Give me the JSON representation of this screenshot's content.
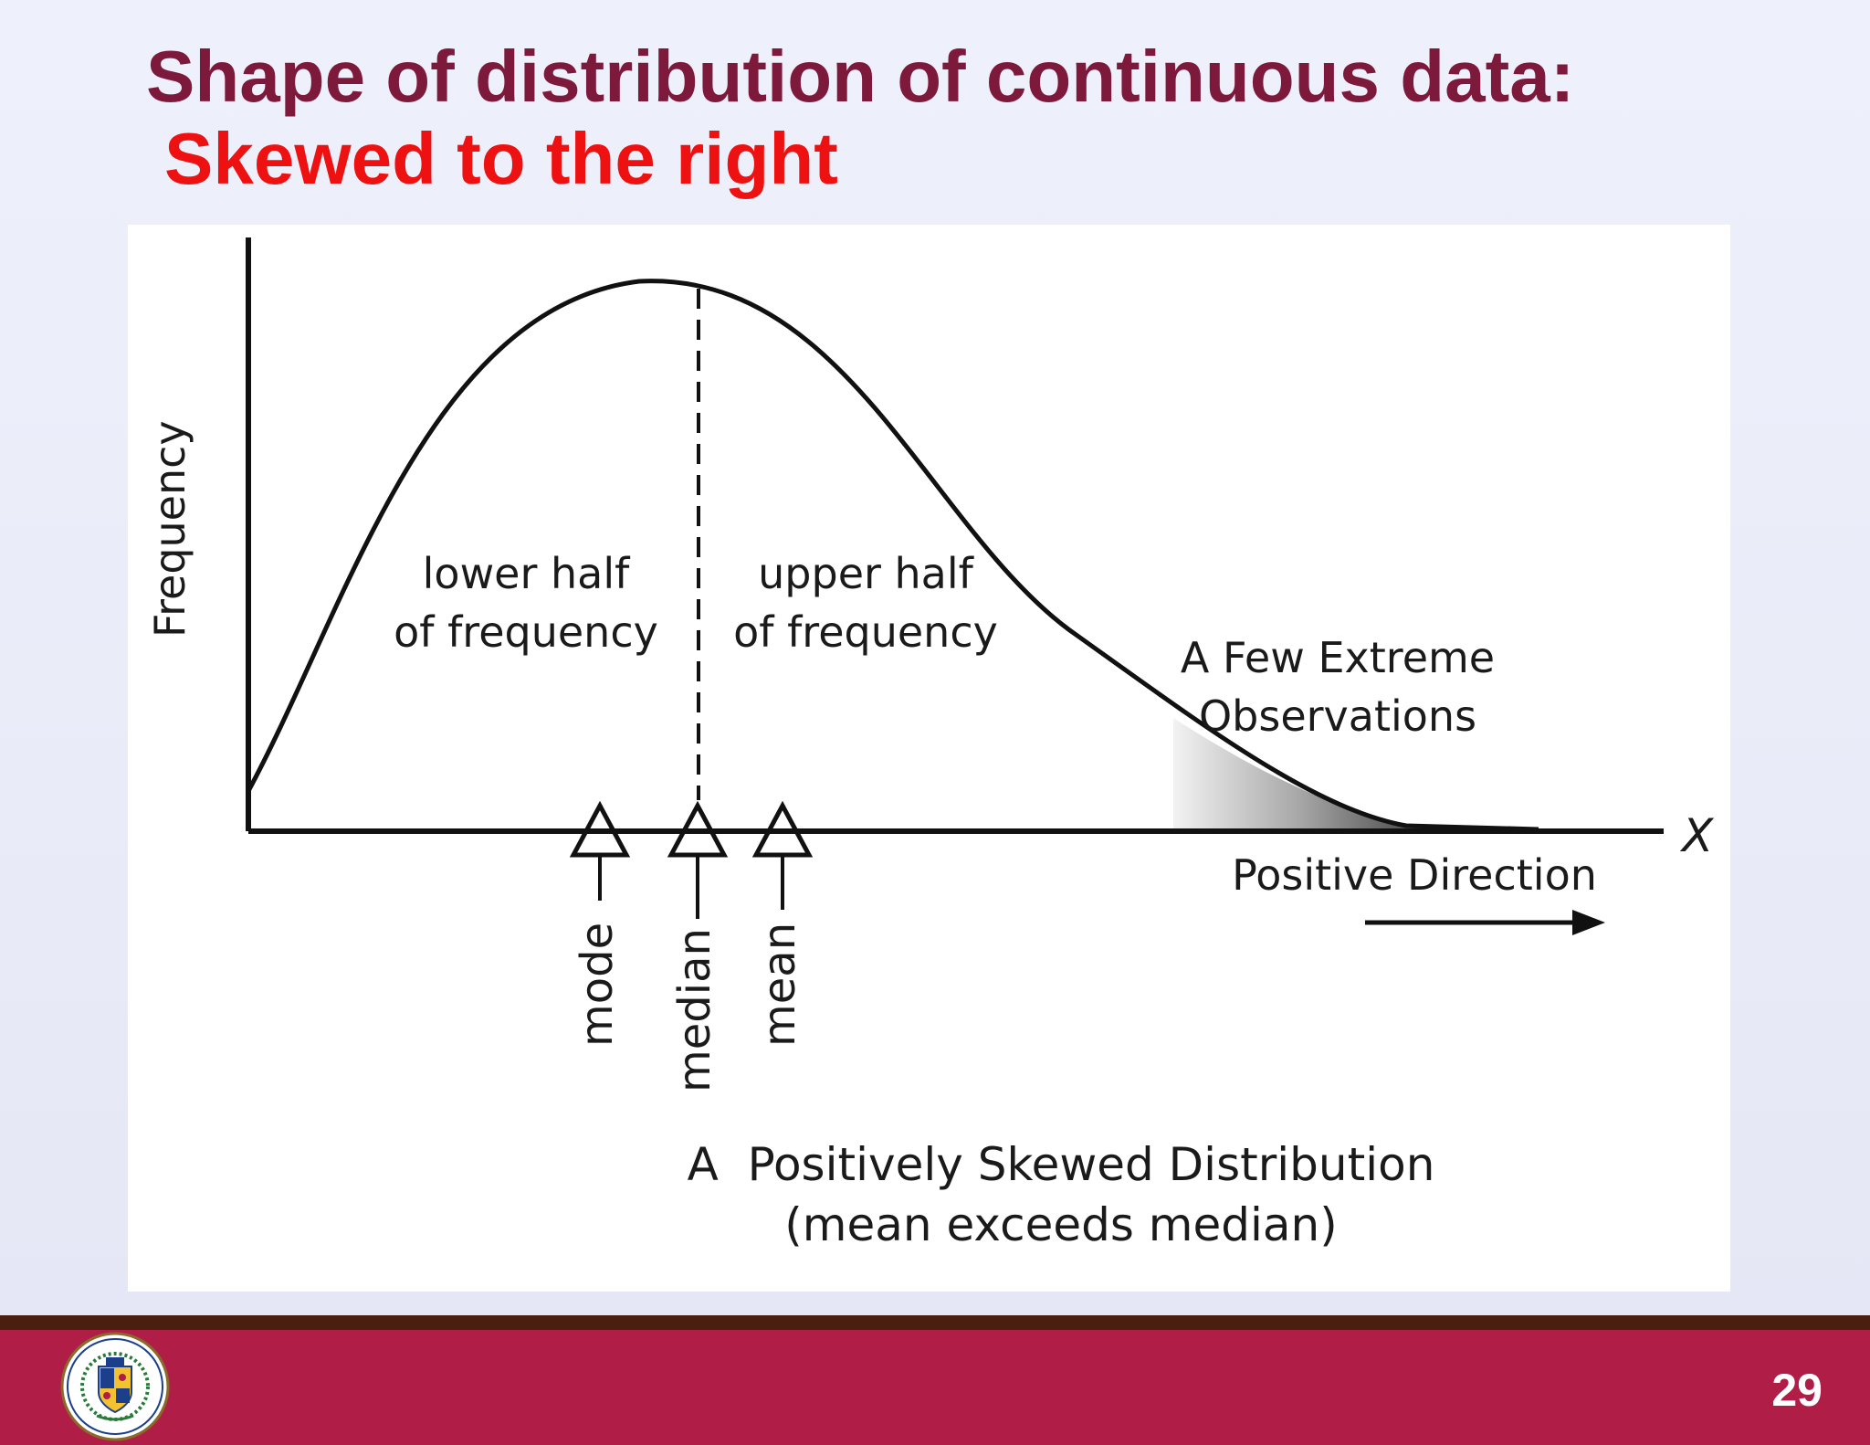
{
  "slide": {
    "title": "Shape of distribution of continuous data:",
    "subtitle": "Skewed to the right",
    "page_number": "29"
  },
  "figure": {
    "y_axis_label": "Frequency",
    "x_axis_label": "X",
    "lower_half_line1": "lower half",
    "lower_half_line2": "of frequency",
    "upper_half_line1": "upper half",
    "upper_half_line2": "of frequency",
    "extreme_line1": "A Few Extreme",
    "extreme_line2": "Observations",
    "direction_label": "Positive Direction",
    "markers": [
      "mode",
      "median",
      "mean"
    ],
    "caption_line1": "A  Positively Skewed Distribution",
    "caption_line2": "(mean exceeds median)"
  },
  "footer": {
    "logo": "university-seal",
    "logo_text": "UNIVERSITY OF SCIENCE AND TECHNOLOGY",
    "color": "#b01e47"
  }
}
